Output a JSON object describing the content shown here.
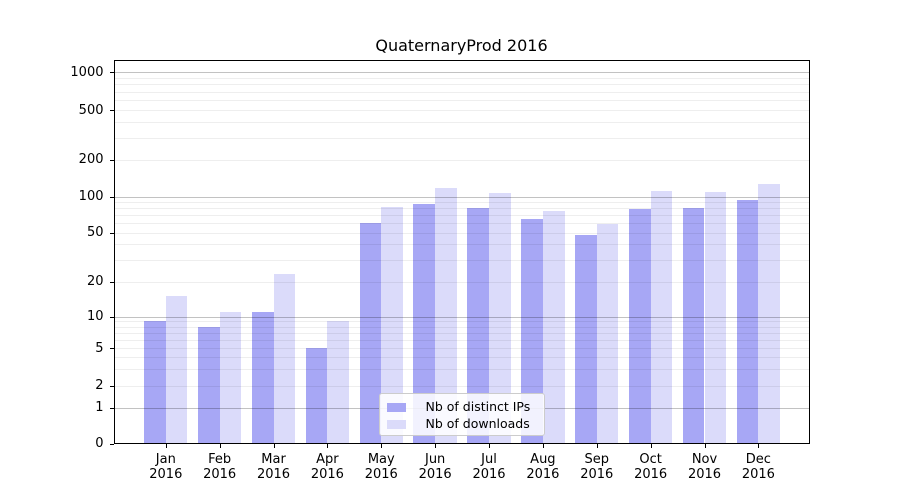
{
  "title": "QuaternaryProd 2016",
  "chart_data": {
    "type": "bar",
    "title": "QuaternaryProd 2016",
    "categories": [
      "Jan 2016",
      "Feb 2016",
      "Mar 2016",
      "Apr 2016",
      "May 2016",
      "Jun 2016",
      "Jul 2016",
      "Aug 2016",
      "Sep 2016",
      "Oct 2016",
      "Nov 2016",
      "Dec 2016"
    ],
    "series": [
      {
        "name": "Nb of distinct IPs",
        "color": "#a7a7f5",
        "values": [
          9,
          8,
          11,
          5,
          60,
          86,
          80,
          65,
          48,
          79,
          80,
          94
        ]
      },
      {
        "name": "Nb of downloads",
        "color": "#dbdbfa",
        "values": [
          15,
          11,
          23,
          9,
          81,
          118,
          106,
          75,
          59,
          110,
          108,
          126
        ]
      }
    ],
    "xlabel": "",
    "ylabel": "",
    "y_axis": {
      "scale": "symlog",
      "tick_values": [
        0,
        1,
        2,
        5,
        10,
        20,
        50,
        100,
        200,
        500,
        1000
      ],
      "tick_labels": [
        "0",
        "1",
        "2",
        "5",
        "10",
        "20",
        "50",
        "100",
        "200",
        "500",
        "1000"
      ]
    },
    "grid": {
      "on": true,
      "major_values": [
        1,
        10,
        100,
        1000
      ],
      "minor_values": [
        2,
        3,
        4,
        5,
        6,
        7,
        8,
        9,
        20,
        30,
        40,
        50,
        60,
        70,
        80,
        90,
        200,
        300,
        400,
        500,
        600,
        700,
        800,
        900
      ]
    },
    "legend": {
      "position": "lower-center",
      "entries": [
        "Nb of distinct IPs",
        "Nb of downloads"
      ]
    }
  }
}
